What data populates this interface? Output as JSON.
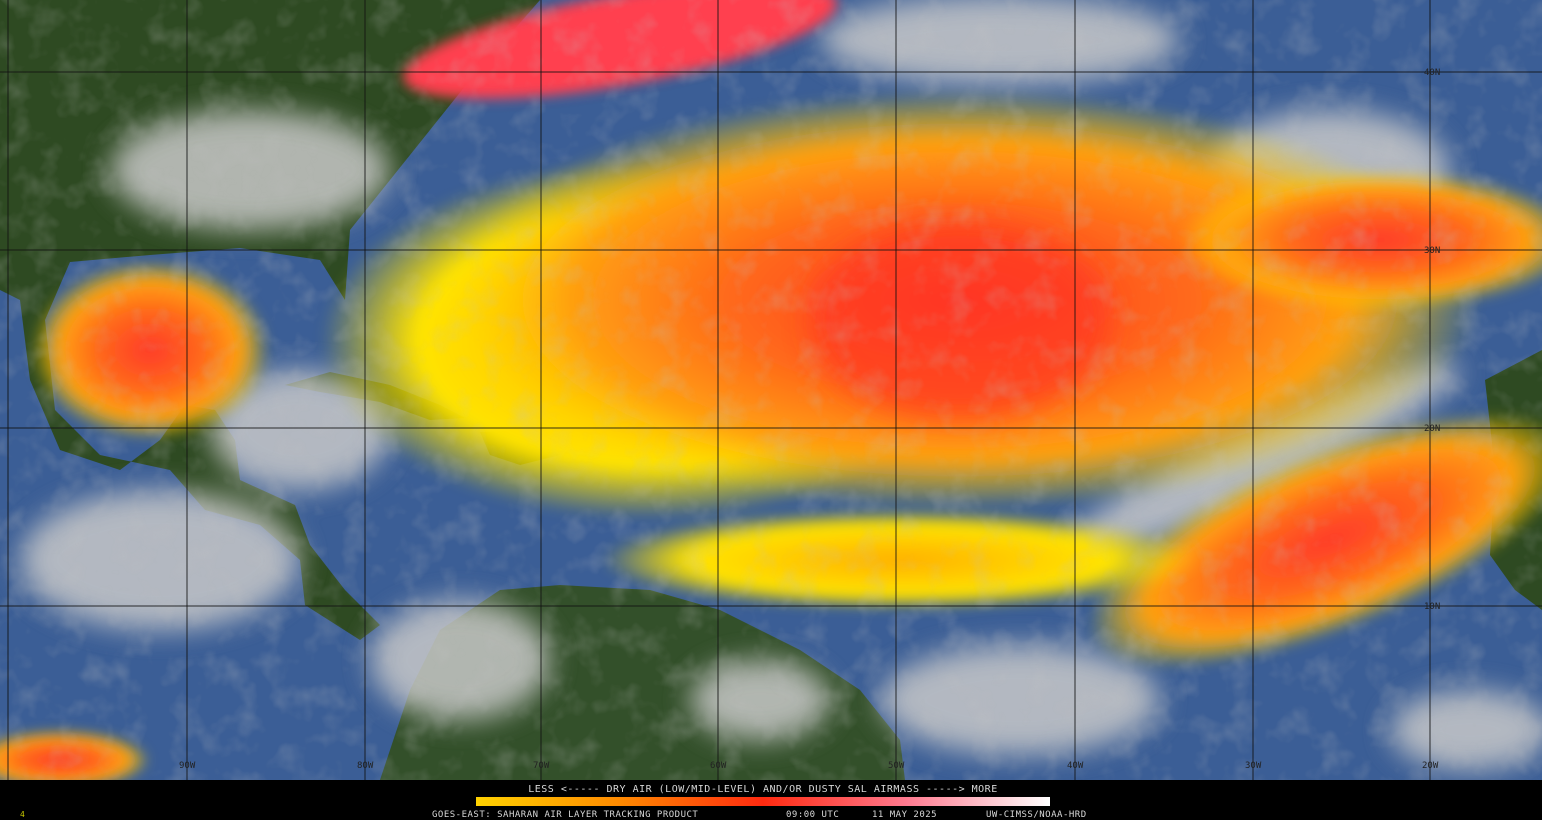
{
  "map": {
    "lat_labels": [
      "40N",
      "30N",
      "20N",
      "10N"
    ],
    "lon_labels": [
      "90W",
      "80W",
      "70W",
      "60W",
      "50W",
      "40W",
      "30W",
      "20W"
    ]
  },
  "legend": {
    "text": "LESS <----- DRY AIR (LOW/MID-LEVEL) AND/OR DUSTY SAL AIRMASS -----> MORE"
  },
  "footer": {
    "product": "GOES-EAST: SAHARAN AIR LAYER TRACKING PRODUCT",
    "time": "09:00 UTC",
    "date": "11 MAY 2025",
    "credit": "UW-CIMSS/NOAA-HRD"
  },
  "corner_label": "4"
}
